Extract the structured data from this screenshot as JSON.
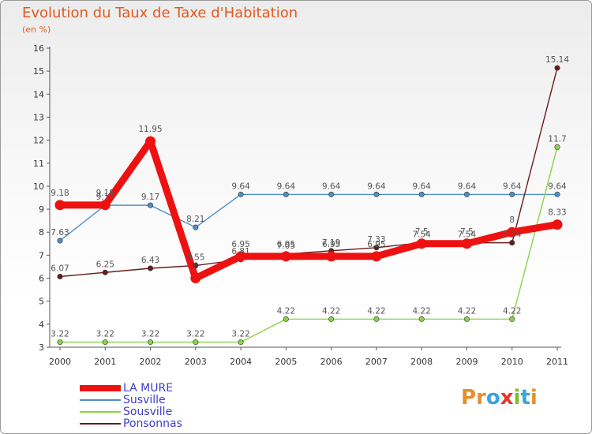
{
  "chart_data": {
    "type": "line",
    "title": "Evolution du Taux de Taxe d'Habitation",
    "subtitle": "(en %)",
    "categories": [
      "2000",
      "2001",
      "2002",
      "2003",
      "2004",
      "2005",
      "2006",
      "2007",
      "2008",
      "2009",
      "2010",
      "2011"
    ],
    "ylim": [
      3,
      16
    ],
    "yticks": [
      "3",
      "4",
      "5",
      "6",
      "7",
      "8",
      "9",
      "10",
      "11",
      "12",
      "13",
      "14",
      "15",
      "16"
    ],
    "grid": false,
    "legend_position": "bottom-left",
    "series": [
      {
        "name": "LA MURE",
        "color": "#ee1111",
        "values": [
          9.18,
          9.18,
          11.95,
          6.0,
          6.95,
          6.95,
          6.95,
          6.95,
          7.5,
          7.5,
          8.0,
          8.33
        ],
        "labels": [
          "9.18",
          "9.18",
          "11.95",
          "6",
          "6.95",
          "6.95",
          "6.95",
          "6.95",
          "7.5",
          "7.5",
          "8",
          "8.33"
        ]
      },
      {
        "name": "Susville",
        "color": "#4f8fc6",
        "values": [
          7.63,
          9.17,
          9.17,
          8.21,
          9.64,
          9.64,
          9.64,
          9.64,
          9.64,
          9.64,
          9.64,
          9.64
        ],
        "labels": [
          "7.63",
          "9.17",
          "9.17",
          "8.21",
          "9.64",
          "9.64",
          "9.64",
          "9.64",
          "9.64",
          "9.64",
          "9.64",
          "9.64"
        ]
      },
      {
        "name": "Sousville",
        "color": "#88d447",
        "values": [
          3.22,
          3.22,
          3.22,
          3.22,
          3.22,
          4.22,
          4.22,
          4.22,
          4.22,
          4.22,
          4.22,
          11.7
        ],
        "labels": [
          "3.22",
          "3.22",
          "3.22",
          "3.22",
          "3.22",
          "4.22",
          "4.22",
          "4.22",
          "4.22",
          "4.22",
          "4.22",
          "11.7"
        ]
      },
      {
        "name": "Ponsonnas",
        "color": "#6a1b1b",
        "values": [
          6.07,
          6.25,
          6.43,
          6.55,
          6.81,
          7.05,
          7.19,
          7.33,
          7.54,
          7.54,
          7.54,
          15.14
        ],
        "labels": [
          "6.07",
          "6.25",
          "6.43",
          "6.55",
          "6.81",
          "7.05",
          "7.19",
          "7.33",
          "7.54",
          "7.54",
          "7.54",
          "15.14"
        ]
      }
    ]
  },
  "brand": {
    "letters": [
      "P",
      "r",
      "o",
      "x",
      "i",
      "t",
      "i"
    ],
    "colors": [
      "#e4902b",
      "#e4902b",
      "#3aa5d8",
      "#e0392b",
      "#7cbf2c",
      "#3aa5d8",
      "#e4902b"
    ]
  }
}
